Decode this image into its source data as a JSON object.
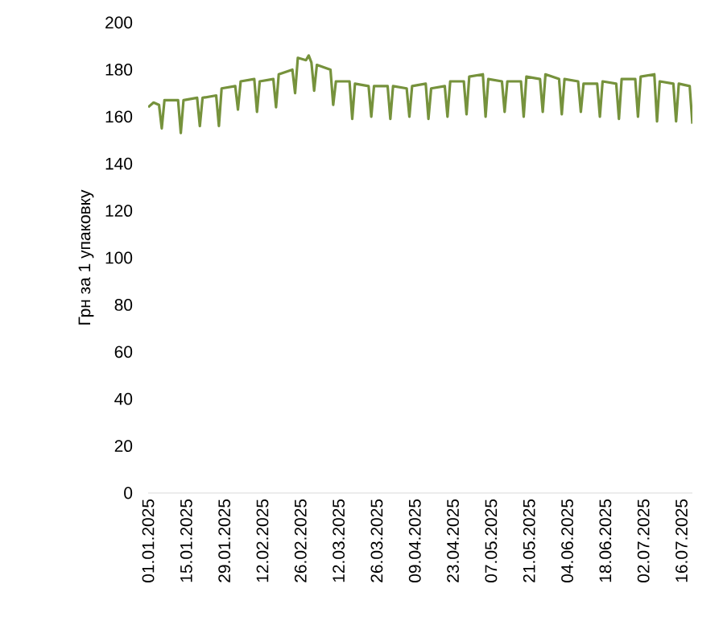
{
  "chart_data": {
    "type": "line",
    "ylabel": "Грн за 1 упаковку",
    "series": [
      {
        "color": "#76923c",
        "x": [
          "2025-01-01",
          "2025-01-03",
          "2025-01-05",
          "2025-01-06",
          "2025-01-07",
          "2025-01-12",
          "2025-01-13",
          "2025-01-14",
          "2025-01-19",
          "2025-01-20",
          "2025-01-21",
          "2025-01-26",
          "2025-01-27",
          "2025-01-28",
          "2025-02-02",
          "2025-02-03",
          "2025-02-04",
          "2025-02-09",
          "2025-02-10",
          "2025-02-11",
          "2025-02-16",
          "2025-02-17",
          "2025-02-18",
          "2025-02-23",
          "2025-02-24",
          "2025-02-25",
          "2025-02-28",
          "2025-03-01",
          "2025-03-02",
          "2025-03-03",
          "2025-03-04",
          "2025-03-09",
          "2025-03-10",
          "2025-03-11",
          "2025-03-16",
          "2025-03-17",
          "2025-03-18",
          "2025-03-23",
          "2025-03-24",
          "2025-03-25",
          "2025-03-30",
          "2025-03-31",
          "2025-04-01",
          "2025-04-06",
          "2025-04-07",
          "2025-04-08",
          "2025-04-13",
          "2025-04-14",
          "2025-04-15",
          "2025-04-20",
          "2025-04-21",
          "2025-04-22",
          "2025-04-27",
          "2025-04-28",
          "2025-04-29",
          "2025-05-04",
          "2025-05-05",
          "2025-05-06",
          "2025-05-11",
          "2025-05-12",
          "2025-05-13",
          "2025-05-18",
          "2025-05-19",
          "2025-05-20",
          "2025-05-25",
          "2025-05-26",
          "2025-05-27",
          "2025-06-01",
          "2025-06-02",
          "2025-06-03",
          "2025-06-08",
          "2025-06-09",
          "2025-06-10",
          "2025-06-15",
          "2025-06-16",
          "2025-06-17",
          "2025-06-22",
          "2025-06-23",
          "2025-06-24",
          "2025-06-29",
          "2025-06-30",
          "2025-07-01",
          "2025-07-06",
          "2025-07-07",
          "2025-07-08",
          "2025-07-13",
          "2025-07-14",
          "2025-07-15",
          "2025-07-19",
          "2025-07-20"
        ],
        "values": [
          164,
          166,
          165,
          155,
          167,
          167,
          153,
          167,
          168,
          156,
          168,
          169,
          156,
          172,
          173,
          163,
          175,
          176,
          162,
          175,
          176,
          164,
          178,
          180,
          170,
          185,
          184,
          186,
          183,
          171,
          182,
          180,
          165,
          175,
          175,
          159,
          174,
          173,
          160,
          173,
          173,
          159,
          173,
          172,
          160,
          173,
          174,
          159,
          172,
          173,
          160,
          175,
          175,
          161,
          177,
          178,
          160,
          176,
          175,
          162,
          175,
          175,
          160,
          177,
          176,
          162,
          178,
          176,
          161,
          176,
          175,
          162,
          174,
          174,
          160,
          175,
          174,
          159,
          176,
          176,
          160,
          177,
          178,
          158,
          175,
          174,
          158,
          174,
          173,
          157
        ]
      }
    ],
    "xticks": [
      {
        "value": "2025-01-01",
        "label": "01.01.2025"
      },
      {
        "value": "2025-01-15",
        "label": "15.01.2025"
      },
      {
        "value": "2025-01-29",
        "label": "29.01.2025"
      },
      {
        "value": "2025-02-12",
        "label": "12.02.2025"
      },
      {
        "value": "2025-02-26",
        "label": "26.02.2025"
      },
      {
        "value": "2025-03-12",
        "label": "12.03.2025"
      },
      {
        "value": "2025-03-26",
        "label": "26.03.2025"
      },
      {
        "value": "2025-04-09",
        "label": "09.04.2025"
      },
      {
        "value": "2025-04-23",
        "label": "23.04.2025"
      },
      {
        "value": "2025-05-07",
        "label": "07.05.2025"
      },
      {
        "value": "2025-05-21",
        "label": "21.05.2025"
      },
      {
        "value": "2025-06-04",
        "label": "04.06.2025"
      },
      {
        "value": "2025-06-18",
        "label": "18.06.2025"
      },
      {
        "value": "2025-07-02",
        "label": "02.07.2025"
      },
      {
        "value": "2025-07-16",
        "label": "16.07.2025"
      }
    ],
    "xlim": [
      "2025-01-01",
      "2025-07-20"
    ],
    "ylim": [
      0,
      200
    ],
    "yticks": [
      0,
      20,
      40,
      60,
      80,
      100,
      120,
      140,
      160,
      180,
      200
    ],
    "grid": false,
    "legend": false,
    "marker": "none",
    "line_style": "solid"
  }
}
